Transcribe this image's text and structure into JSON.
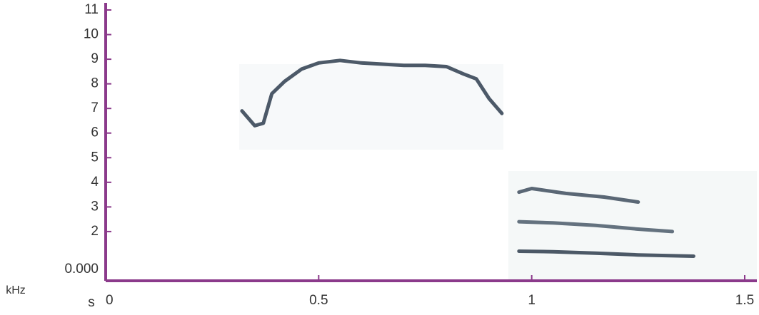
{
  "chart_data": {
    "type": "spectrogram",
    "y_label": "kHz",
    "x_label": "s",
    "xlim": [
      0,
      1.53
    ],
    "ylim": [
      0,
      11
    ],
    "xticks": [
      0,
      0.5,
      1,
      1.5
    ],
    "yticks": [
      {
        "value": 0,
        "label": "0.000"
      },
      2,
      3,
      4,
      5,
      6,
      7,
      8,
      9,
      10,
      11
    ],
    "axis_color": "#8b3a8b",
    "traces": [
      {
        "color": "#2e3d4d",
        "x": [
          0.32,
          0.35,
          0.37,
          0.39,
          0.42,
          0.46,
          0.5,
          0.55,
          0.6,
          0.65,
          0.7,
          0.75,
          0.8,
          0.84,
          0.87,
          0.9,
          0.93
        ],
        "values": [
          6.9,
          6.3,
          6.4,
          7.6,
          8.1,
          8.6,
          8.85,
          8.95,
          8.85,
          8.8,
          8.75,
          8.75,
          8.7,
          8.4,
          8.2,
          7.4,
          6.8
        ]
      },
      {
        "color": "#2e3d4d",
        "x": [
          0.97,
          1.05,
          1.15,
          1.25,
          1.38
        ],
        "values": [
          1.2,
          1.18,
          1.12,
          1.05,
          1.0
        ]
      },
      {
        "color": "#4a5a6a",
        "x": [
          0.97,
          1.05,
          1.15,
          1.25,
          1.33
        ],
        "values": [
          2.4,
          2.35,
          2.25,
          2.1,
          2.0
        ]
      },
      {
        "color": "#3e4e5e",
        "x": [
          0.97,
          1.0,
          1.08,
          1.17,
          1.25
        ],
        "values": [
          3.6,
          3.75,
          3.55,
          3.4,
          3.2
        ]
      }
    ]
  }
}
